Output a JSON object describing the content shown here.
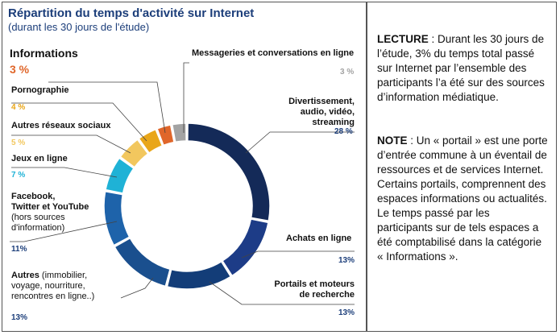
{
  "title": "Répartition du temps d'activité sur Internet",
  "subtitle": "(durant les 30 jours de l'étude)",
  "chart_data": {
    "type": "pie",
    "style": "donut",
    "slices": [
      {
        "label": "Divertissement, audio, vidéo, streaming",
        "value": 28,
        "display": "28 %",
        "color": "#142a58"
      },
      {
        "label": "Achats en ligne",
        "value": 13,
        "display": "13%",
        "color": "#1d3c87"
      },
      {
        "label": "Portails et moteurs de recherche",
        "value": 13,
        "display": "13%",
        "color": "#133d78"
      },
      {
        "label": "Autres (immobilier, voyage, nourriture, rencontres en ligne..)",
        "value": 13,
        "display": "13%",
        "color": "#1a4f8e"
      },
      {
        "label": "Facebook, Twitter et YouTube (hors sources d'information)",
        "value": 11,
        "display": "11%",
        "color": "#1e63aa"
      },
      {
        "label": "Jeux en ligne",
        "value": 7,
        "display": "7 %",
        "color": "#1fb2d6"
      },
      {
        "label": "Autres réseaux sociaux",
        "value": 5,
        "display": "5 %",
        "color": "#f2c75e"
      },
      {
        "label": "Pornographie",
        "value": 4,
        "display": "4 %",
        "color": "#e9a619"
      },
      {
        "label": "Informations",
        "value": 3,
        "display": "3 %",
        "color": "#e0662a"
      },
      {
        "label": "Messageries et conversations en ligne",
        "value": 3,
        "display": "3 %",
        "color": "#a3a3a3"
      }
    ]
  },
  "labels": {
    "messageries": "Messageries et conversations en ligne",
    "messageries_pct": "3 %",
    "divert_l1": "Divertissement,",
    "divert_l2": "audio, vidéo, streaming",
    "divert_pct": "28 %",
    "achats": "Achats en ligne",
    "achats_pct": "13%",
    "portails_l1": "Portails et moteurs",
    "portails_l2": "de recherche",
    "portails_pct": "13%",
    "informations": "Informations",
    "informations_pct": "3 %",
    "porno": "Pornographie",
    "porno_pct": "4 %",
    "autres_rs": "Autres réseaux sociaux",
    "autres_rs_pct": "5 %",
    "jeux": "Jeux en ligne",
    "jeux_pct": "7 %",
    "fb_l1": "Facebook,",
    "fb_l2": "Twitter et YouTube",
    "fb_l3": "(hors sources",
    "fb_l4": "d'information)",
    "fb_pct": "11%",
    "autres_bold": "Autres",
    "autres_l1": " (immobilier,",
    "autres_l2": "voyage, nourriture,",
    "autres_l3": "rencontres en ligne..)",
    "autres_pct": "13%"
  },
  "colors": {
    "title": "#1c3e7a",
    "pct_grey": "#a3a3a3",
    "pct_orange": "#e0662a",
    "pct_gold": "#e9a619",
    "pct_yellow": "#f2c75e",
    "pct_cyan": "#1fb2d6",
    "pct_navy": "#1c3e7a"
  },
  "side": {
    "lecture_head": "LECTURE",
    "lecture_text": " : Durant les 30 jours de l’étude, 3% du temps total passé sur Internet par l’ensemble des participants l’a été sur des sources d’information médiatique.",
    "note_head": "NOTE",
    "note_text": " : Un « portail » est une porte d’entrée commune à un éventail de ressources et de services Internet. Certains portails, comprennent des espaces informations ou actualités. Le temps passé par les participants sur de tels espaces a été comptabilisé dans la catégorie « Informations »."
  }
}
